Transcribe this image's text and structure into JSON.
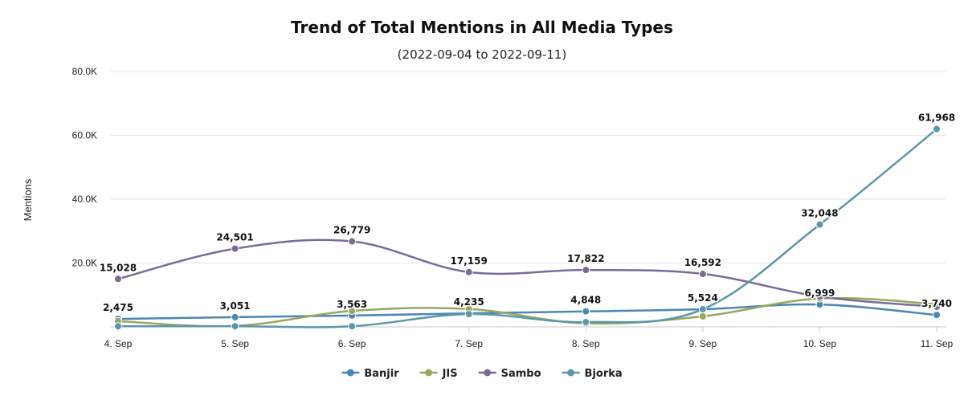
{
  "chart_data": {
    "type": "line",
    "title": "Trend of Total Mentions in All Media Types",
    "subtitle": "(2022-09-04 to 2022-09-11)",
    "xlabel": "",
    "ylabel": "Mentions",
    "categories": [
      "4. Sep",
      "5. Sep",
      "6. Sep",
      "7. Sep",
      "8. Sep",
      "9. Sep",
      "10. Sep",
      "11. Sep"
    ],
    "ylim": [
      0,
      80000
    ],
    "yticks": [
      20000,
      40000,
      60000,
      80000
    ],
    "ytick_labels": [
      "20.0K",
      "40.0K",
      "60.0K",
      "80.0K"
    ],
    "grid": true,
    "legend_position": "bottom-center",
    "series": [
      {
        "name": "Banjir",
        "color": "#4a86b5",
        "values": [
          2475,
          3051,
          3563,
          4235,
          4848,
          5524,
          6999,
          3740
        ],
        "labels": [
          "2,475",
          "3,051",
          "3,563",
          "4,235",
          "4,848",
          "5,524",
          "6,999",
          "3,740"
        ]
      },
      {
        "name": "JIS",
        "color": "#97a85c",
        "values": [
          1800,
          300,
          5000,
          5600,
          1100,
          3300,
          8900,
          7100
        ],
        "labels": []
      },
      {
        "name": "Sambo",
        "color": "#7b6a98",
        "values": [
          15028,
          24501,
          26779,
          17159,
          17822,
          16592,
          9500,
          6300
        ],
        "labels": [
          "15,028",
          "24,501",
          "26,779",
          "17,159",
          "17,822",
          "16,592",
          "",
          ""
        ]
      },
      {
        "name": "Bjorka",
        "color": "#5b97ab",
        "values": [
          200,
          200,
          200,
          4000,
          1500,
          5524,
          32048,
          61968
        ],
        "labels": [
          "",
          "",
          "",
          "",
          "",
          "",
          "32,048",
          "61,968"
        ]
      }
    ]
  }
}
